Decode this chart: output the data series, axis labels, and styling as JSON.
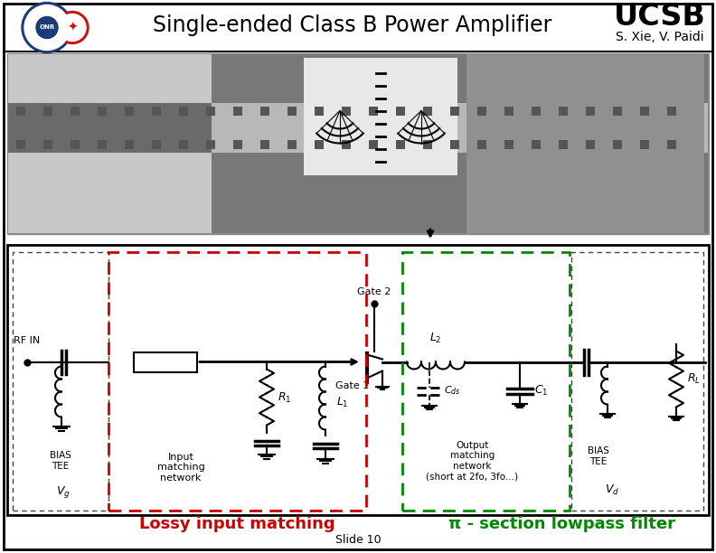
{
  "title": "Single-ended Class B Power Amplifier",
  "ucsb_text": "UCSB",
  "author_text": "S. Xie, V. Paidi",
  "slide_number": "Slide 10",
  "bg_color": "#ffffff",
  "lossy_label": "Lossy input matching",
  "lossy_color": "#cc0000",
  "pi_label": "π - section lowpass filter",
  "pi_color": "#008800",
  "title_fontsize": 17,
  "ucsb_fontsize": 24,
  "author_fontsize": 10,
  "slide_fontsize": 9
}
